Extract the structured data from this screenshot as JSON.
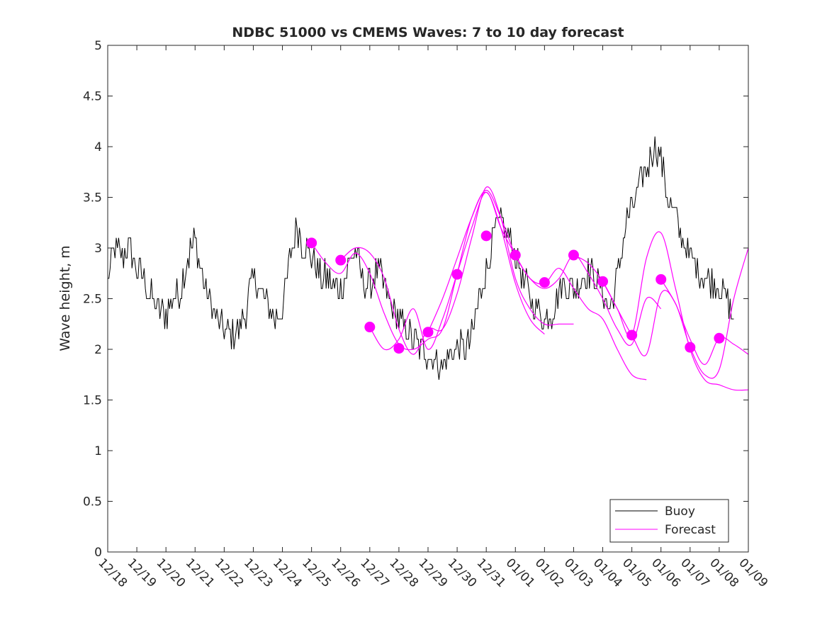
{
  "chart_data": {
    "type": "line",
    "title": "NDBC 51000 vs CMEMS Waves: 7 to 10 day forecast",
    "xlabel": "",
    "ylabel": "Wave height, m",
    "ylim": [
      0,
      5
    ],
    "xlim": [
      0,
      22
    ],
    "yticks": [
      0,
      0.5,
      1,
      1.5,
      2,
      2.5,
      3,
      3.5,
      4,
      4.5,
      5
    ],
    "ytick_labels": [
      "0",
      "0.5",
      "1",
      "1.5",
      "2",
      "2.5",
      "3",
      "3.5",
      "4",
      "4.5",
      "5"
    ],
    "xtick_labels": [
      "12/18",
      "12/19",
      "12/20",
      "12/21",
      "12/22",
      "12/23",
      "12/24",
      "12/25",
      "12/26",
      "12/27",
      "12/28",
      "12/29",
      "12/30",
      "12/31",
      "01/01",
      "01/02",
      "01/03",
      "01/04",
      "01/05",
      "01/06",
      "01/07",
      "01/08",
      "01/09"
    ],
    "legend": {
      "location": "bottom-right",
      "entries": [
        "Buoy",
        "Forecast"
      ]
    },
    "colors": {
      "buoy": "#000000",
      "forecast": "#ff00ff",
      "axes": "#262626"
    },
    "series": [
      {
        "name": "Buoy",
        "x": [
          0,
          0.25,
          0.5,
          0.75,
          1,
          1.25,
          1.5,
          1.75,
          2,
          2.25,
          2.5,
          2.75,
          3,
          3.25,
          3.5,
          3.75,
          4,
          4.25,
          4.5,
          4.75,
          5,
          5.25,
          5.5,
          5.75,
          6,
          6.25,
          6.5,
          6.75,
          7,
          7.25,
          7.5,
          7.75,
          8,
          8.25,
          8.5,
          8.75,
          9,
          9.25,
          9.5,
          9.75,
          10,
          10.25,
          10.5,
          10.75,
          11,
          11.25,
          11.5,
          11.75,
          12,
          12.25,
          12.5,
          12.75,
          13,
          13.25,
          13.5,
          13.75,
          14,
          14.25,
          14.5,
          14.75,
          15,
          15.25,
          15.5,
          15.75,
          16,
          16.25,
          16.5,
          16.75,
          17,
          17.25,
          17.5,
          17.75,
          18,
          18.25,
          18.5,
          18.75,
          19,
          19.25,
          19.5,
          19.75,
          20,
          20.25,
          20.5,
          20.75,
          21,
          21.25,
          21.5
        ],
        "values": [
          2.7,
          3.0,
          2.9,
          3.0,
          2.8,
          2.7,
          2.5,
          2.4,
          2.35,
          2.5,
          2.6,
          2.9,
          3.1,
          2.7,
          2.5,
          2.3,
          2.2,
          2.1,
          2.2,
          2.4,
          2.7,
          2.6,
          2.4,
          2.3,
          2.4,
          2.9,
          3.2,
          3.0,
          2.9,
          2.75,
          2.7,
          2.6,
          2.6,
          2.8,
          3.0,
          2.7,
          2.6,
          2.8,
          2.6,
          2.4,
          2.3,
          2.2,
          2.1,
          2.0,
          1.95,
          1.9,
          1.85,
          1.95,
          2.0,
          2.0,
          2.1,
          2.5,
          2.8,
          3.1,
          3.25,
          3.1,
          2.95,
          2.7,
          2.5,
          2.4,
          2.3,
          2.35,
          2.6,
          2.65,
          2.6,
          2.7,
          2.8,
          2.7,
          2.55,
          2.4,
          2.7,
          3.2,
          3.4,
          3.6,
          3.8,
          4.0,
          3.9,
          3.5,
          3.3,
          3.1,
          2.9,
          2.8,
          2.7,
          2.7,
          2.6,
          2.5,
          2.3
        ]
      },
      {
        "name": "Forecast",
        "lines": [
          {
            "x": [
              7,
              7.5,
              8,
              8.5,
              9,
              9.5,
              10,
              10.5,
              11,
              11.5,
              12,
              12.5,
              13,
              13.5,
              14,
              14.5,
              15
            ],
            "values": [
              3.05,
              2.85,
              2.75,
              2.95,
              2.75,
              2.35,
              2.05,
              2.0,
              2.1,
              2.2,
              2.75,
              3.3,
              3.55,
              3.2,
              2.65,
              2.3,
              2.15
            ]
          },
          {
            "x": [
              8,
              8.5,
              9,
              9.5,
              10,
              10.5,
              11,
              11.5,
              12,
              12.5,
              13,
              13.5,
              14,
              14.5,
              15,
              15.5,
              16
            ],
            "values": [
              2.88,
              3.0,
              2.95,
              2.7,
              2.2,
              1.95,
              2.2,
              2.2,
              2.55,
              3.1,
              3.6,
              3.3,
              2.7,
              2.4,
              2.25,
              2.25,
              2.25
            ]
          },
          {
            "x": [
              9,
              9.5,
              10,
              10.5,
              11,
              11.5,
              12,
              12.5,
              13,
              13.5,
              14,
              14.5,
              15,
              15.5,
              16,
              16.5,
              17,
              17.5,
              18,
              18.5
            ],
            "values": [
              2.22,
              2.0,
              2.1,
              2.4,
              2.0,
              2.3,
              2.75,
              3.2,
              3.55,
              3.2,
              2.93,
              2.7,
              2.65,
              2.8,
              2.6,
              2.4,
              2.3,
              2.0,
              1.75,
              1.7
            ]
          },
          {
            "x": [
              11,
              11.5,
              12,
              12.5,
              13,
              13.5,
              14,
              14.5,
              15,
              15.5,
              16,
              16.5,
              17,
              17.5,
              18,
              18.5,
              19
            ],
            "values": [
              2.17,
              2.5,
              2.9,
              3.3,
              3.57,
              3.3,
              2.93,
              2.7,
              2.6,
              2.7,
              2.93,
              2.75,
              2.5,
              2.2,
              2.05,
              2.5,
              2.4
            ]
          },
          {
            "x": [
              16,
              16.5,
              17,
              17.5,
              18,
              18.5,
              19,
              19.5,
              20,
              20.5,
              21,
              21.5,
              22
            ],
            "values": [
              2.93,
              2.85,
              2.67,
              2.4,
              2.14,
              1.95,
              2.55,
              2.45,
              2.02,
              1.75,
              1.8,
              2.5,
              3.0
            ]
          },
          {
            "x": [
              17,
              17.5,
              18,
              18.5,
              19,
              19.5,
              20,
              20.5,
              21,
              21.5,
              22
            ],
            "values": [
              2.67,
              2.4,
              2.14,
              2.9,
              3.15,
              2.6,
              2.0,
              1.7,
              1.65,
              1.6,
              1.6
            ]
          },
          {
            "x": [
              19,
              19.5,
              20,
              20.5,
              21,
              21.5,
              22
            ],
            "values": [
              2.69,
              2.45,
              2.1,
              1.85,
              2.11,
              2.05,
              1.95
            ]
          }
        ],
        "markers": {
          "x": [
            7,
            8,
            9,
            10,
            11,
            12,
            13,
            14,
            15,
            16,
            17,
            18,
            19,
            20,
            21
          ],
          "values": [
            3.05,
            2.88,
            2.22,
            2.01,
            2.17,
            2.74,
            3.12,
            2.93,
            2.66,
            2.93,
            2.67,
            2.14,
            2.69,
            2.02,
            2.11
          ]
        }
      }
    ]
  }
}
